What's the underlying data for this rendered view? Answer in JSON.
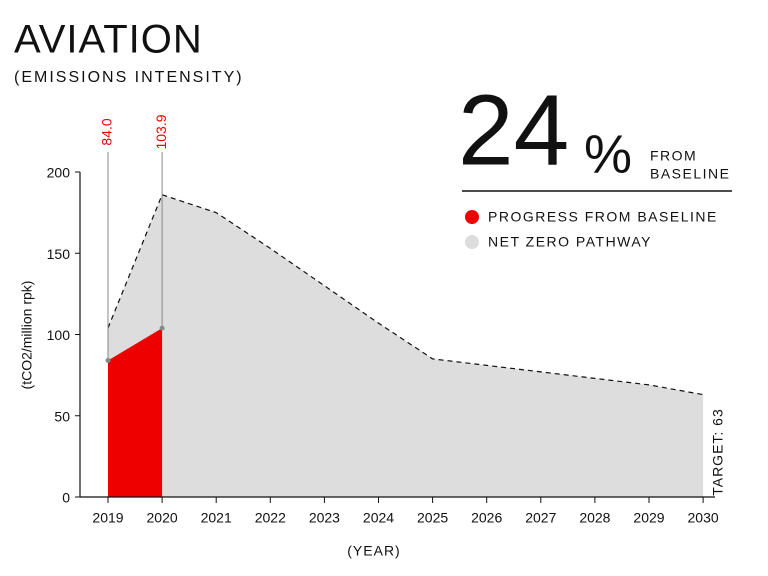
{
  "chart_data": {
    "type": "area",
    "title": "AVIATION",
    "subtitle": "(EMISSIONS INTENSITY)",
    "y_label": "(tCO2/million rpk)",
    "x_label": "(YEAR)",
    "headline": {
      "value": "24",
      "unit": "%",
      "lines": [
        "FROM",
        "BASELINE"
      ]
    },
    "target_label": "TARGET: 63",
    "categories": [
      "2019",
      "2020",
      "2021",
      "2022",
      "2023",
      "2024",
      "2025",
      "2026",
      "2027",
      "2028",
      "2029",
      "2030"
    ],
    "series": [
      {
        "name": "PROGRESS FROM BASELINE",
        "color": "#ee0000",
        "values": [
          84.0,
          103.9,
          null,
          null,
          null,
          null,
          null,
          null,
          null,
          null,
          null,
          null
        ],
        "value_labels": [
          "84.0",
          "103.9",
          null,
          null,
          null,
          null,
          null,
          null,
          null,
          null,
          null,
          null
        ]
      },
      {
        "name": "NET ZERO PATHWAY",
        "color": "#dddddd",
        "values": [
          104,
          186,
          175,
          153,
          130,
          107,
          85,
          81,
          77,
          73,
          69,
          63
        ]
      }
    ],
    "ylim": [
      0,
      200
    ],
    "yticks": [
      0,
      50,
      100,
      150,
      200
    ]
  }
}
